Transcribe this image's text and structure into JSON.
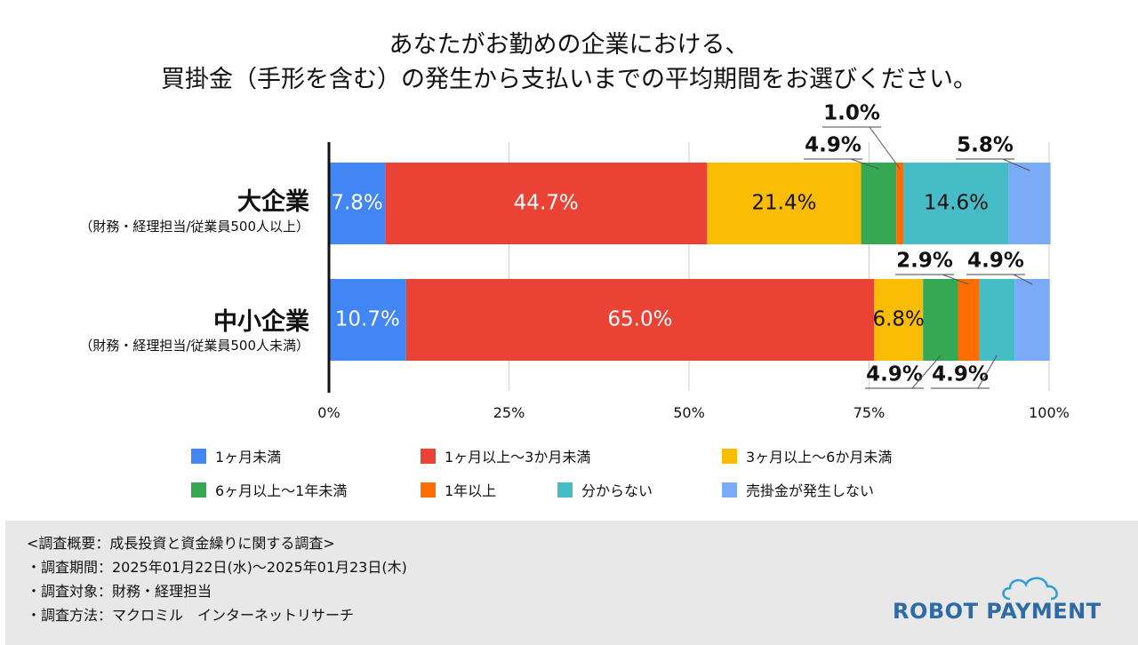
{
  "chart_data": {
    "type": "bar",
    "orientation": "horizontal",
    "stacked": true,
    "title_line1": "あなたがお勤めの企業における、",
    "title_line2": "買掛金（手形を含む）の発生から支払いまでの平均期間をお選びください。",
    "categories": [
      {
        "name": "大企業",
        "sub": "（財務・経理担当/従業員500人以上）"
      },
      {
        "name": "中小企業",
        "sub": "（財務・経理担当/従業員500人未満）"
      }
    ],
    "series": [
      {
        "name": "1ヶ月未満",
        "color": "#4285f4",
        "values": [
          7.8,
          10.7
        ],
        "labels": [
          "7.8%",
          "10.7%"
        ]
      },
      {
        "name": "1ヶ月以上～3か月未満",
        "color": "#ea4335",
        "values": [
          44.7,
          65.0
        ],
        "labels": [
          "44.7%",
          "65.0%"
        ]
      },
      {
        "name": "3ヶ月以上～6か月未満",
        "color": "#fbbc04",
        "values": [
          21.4,
          6.8
        ],
        "labels": [
          "21.4%",
          "6.8%"
        ]
      },
      {
        "name": "6ヶ月以上～1年未満",
        "color": "#34a853",
        "values": [
          4.9,
          4.9
        ],
        "labels": [
          "4.9%",
          "4.9%"
        ]
      },
      {
        "name": "1年以上",
        "color": "#ff6d01",
        "values": [
          1.0,
          2.9
        ],
        "labels": [
          "1.0%",
          "2.9%"
        ]
      },
      {
        "name": "分からない",
        "color": "#46bdc6",
        "values": [
          14.6,
          4.9
        ],
        "labels": [
          "14.6%",
          "4.9%"
        ]
      },
      {
        "name": "売掛金が発生しない",
        "color": "#7baaf7",
        "values": [
          5.8,
          4.9
        ],
        "labels": [
          "5.8%",
          "4.9%"
        ]
      }
    ],
    "xlim": [
      0,
      100
    ],
    "xticks": [
      "0%",
      "25%",
      "50%",
      "75%",
      "100%"
    ],
    "grid": true,
    "legend_position": "bottom"
  },
  "footer": {
    "line1": "<調査概要：成長投資と資金繰りに関する調査>",
    "line2": "・調査期間：2025年01月22日(水)～2025年01月23日(木)",
    "line3": "・調査対象：財務・経理担当",
    "line4": "・調査方法：マクロミル　インターネットリサーチ"
  },
  "logo": {
    "text": "ROBOT PAYMENT",
    "icon": "cloud-icon",
    "color": "#2e6aa6"
  }
}
